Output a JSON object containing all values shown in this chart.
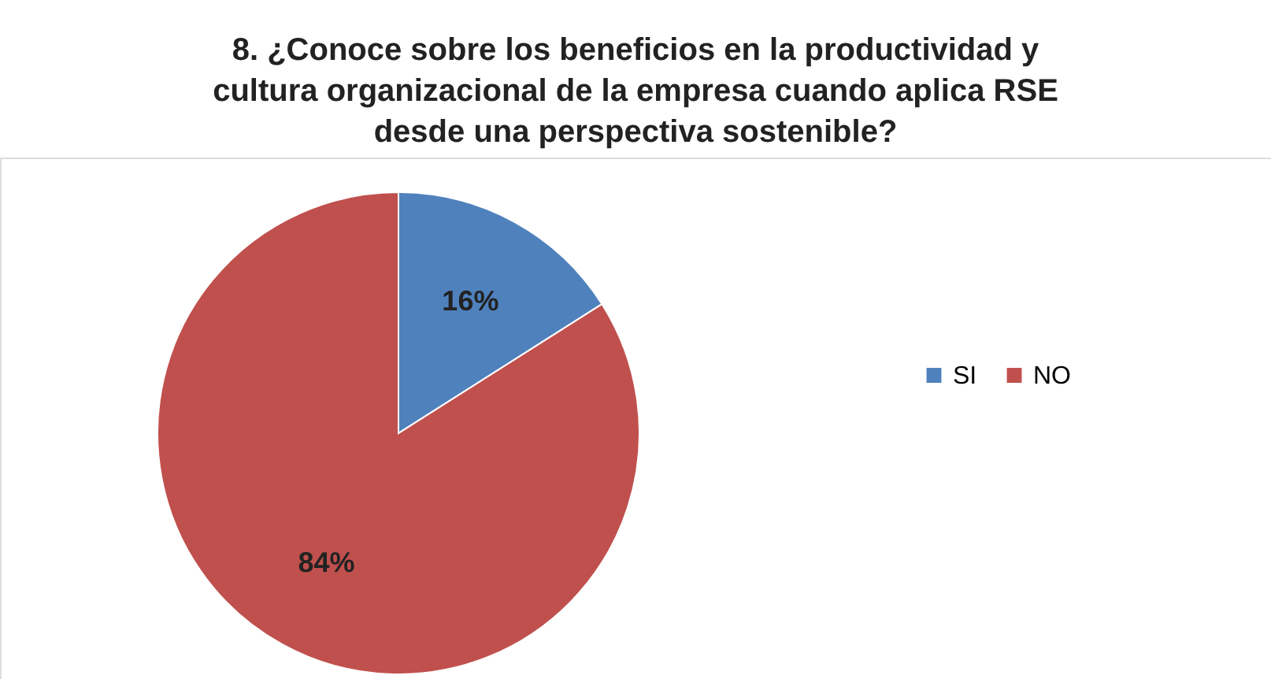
{
  "chart_data": {
    "type": "pie",
    "title": "8. ¿Conoce sobre los beneficios en la productividad y cultura organizacional de la empresa cuando aplica RSE desde una perspectiva sostenible?",
    "categories": [
      "SI",
      "NO"
    ],
    "values": [
      16,
      84
    ],
    "value_labels": [
      "16%",
      "84%"
    ],
    "colors": [
      "#4f81bd",
      "#c0504d"
    ],
    "legend": "right"
  }
}
